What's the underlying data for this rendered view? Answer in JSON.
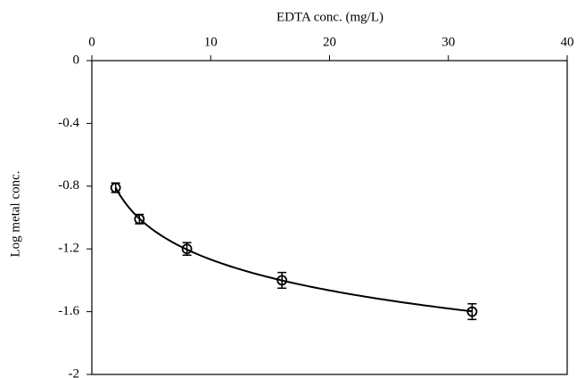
{
  "chart_data": {
    "type": "scatter",
    "xlabel": "EDTA conc. (mg/L)",
    "ylabel": "Log metal conc.",
    "xlim": [
      0,
      40
    ],
    "xticks": [
      0,
      10,
      20,
      30,
      40
    ],
    "xaxis_position": "top",
    "ylim": [
      -2,
      0
    ],
    "yticks": [
      0,
      -0.4,
      -0.8,
      -1.2,
      -1.6,
      -2
    ],
    "trendline": "logarithmic",
    "color": "#000000",
    "x": [
      2,
      4,
      8,
      16,
      32
    ],
    "values": [
      -0.81,
      -1.01,
      -1.2,
      -1.4,
      -1.6
    ],
    "errors": [
      0.03,
      0.03,
      0.04,
      0.05,
      0.05
    ]
  }
}
